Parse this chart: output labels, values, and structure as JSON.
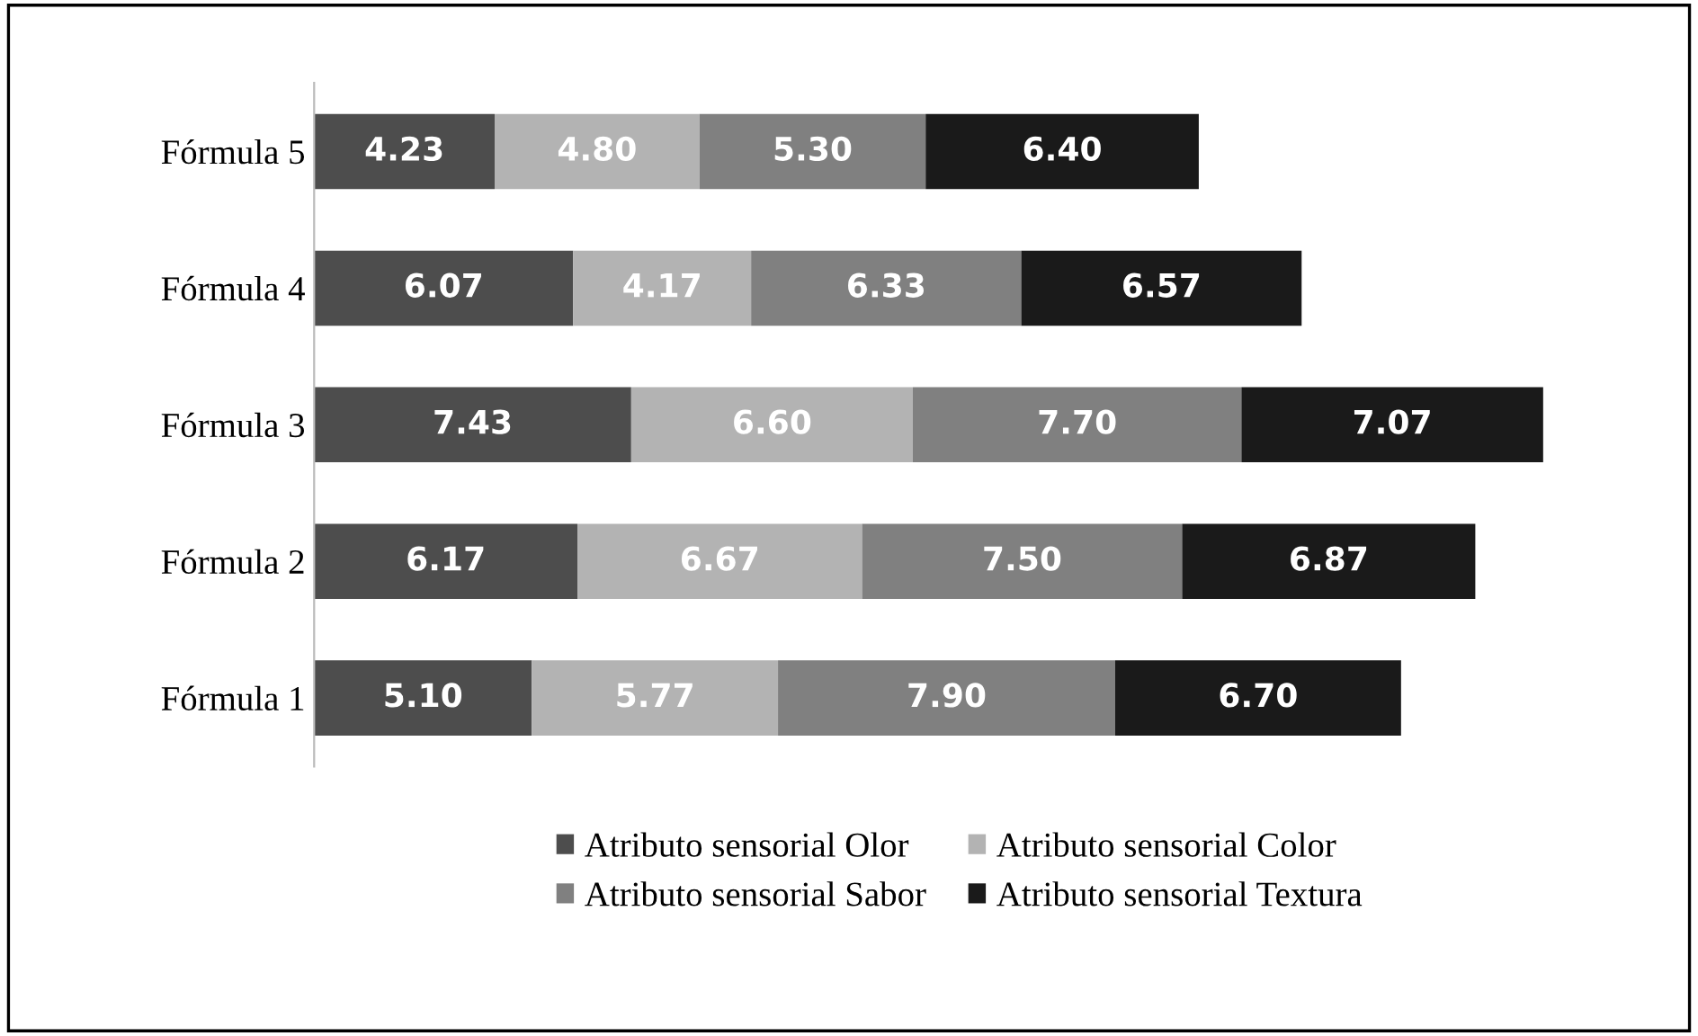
{
  "chart_data": {
    "type": "bar",
    "orientation": "horizontal",
    "stacked": true,
    "legend": "bottom",
    "grid": false,
    "tick_labels": "y",
    "categories": [
      "Fórmula 5",
      "Fórmula 4",
      "Fórmula 3",
      "Fórmula 2",
      "Fórmula 1"
    ],
    "series": [
      {
        "name": "Atributo sensorial Olor",
        "color": "#4d4d4d",
        "values": [
          4.23,
          6.07,
          7.43,
          6.17,
          5.1
        ],
        "value_labels": [
          "4.23",
          "6.07",
          "7.43",
          "6.17",
          "5.10"
        ]
      },
      {
        "name": "Atributo sensorial Color",
        "color": "#b3b3b3",
        "values": [
          4.8,
          4.17,
          6.6,
          6.67,
          5.77
        ],
        "value_labels": [
          "4.80",
          "4.17",
          "6.60",
          "6.67",
          "5.77"
        ]
      },
      {
        "name": "Atributo sensorial Sabor",
        "color": "#808080",
        "values": [
          5.3,
          6.33,
          7.7,
          7.5,
          7.9
        ],
        "value_labels": [
          "5.30",
          "6.33",
          "7.70",
          "7.50",
          "7.90"
        ]
      },
      {
        "name": "Atributo sensorial Textura",
        "color": "#1a1a1a",
        "values": [
          6.4,
          6.57,
          7.07,
          6.87,
          6.7
        ],
        "value_labels": [
          "6.40",
          "6.57",
          "7.07",
          "6.87",
          "6.70"
        ]
      }
    ]
  }
}
